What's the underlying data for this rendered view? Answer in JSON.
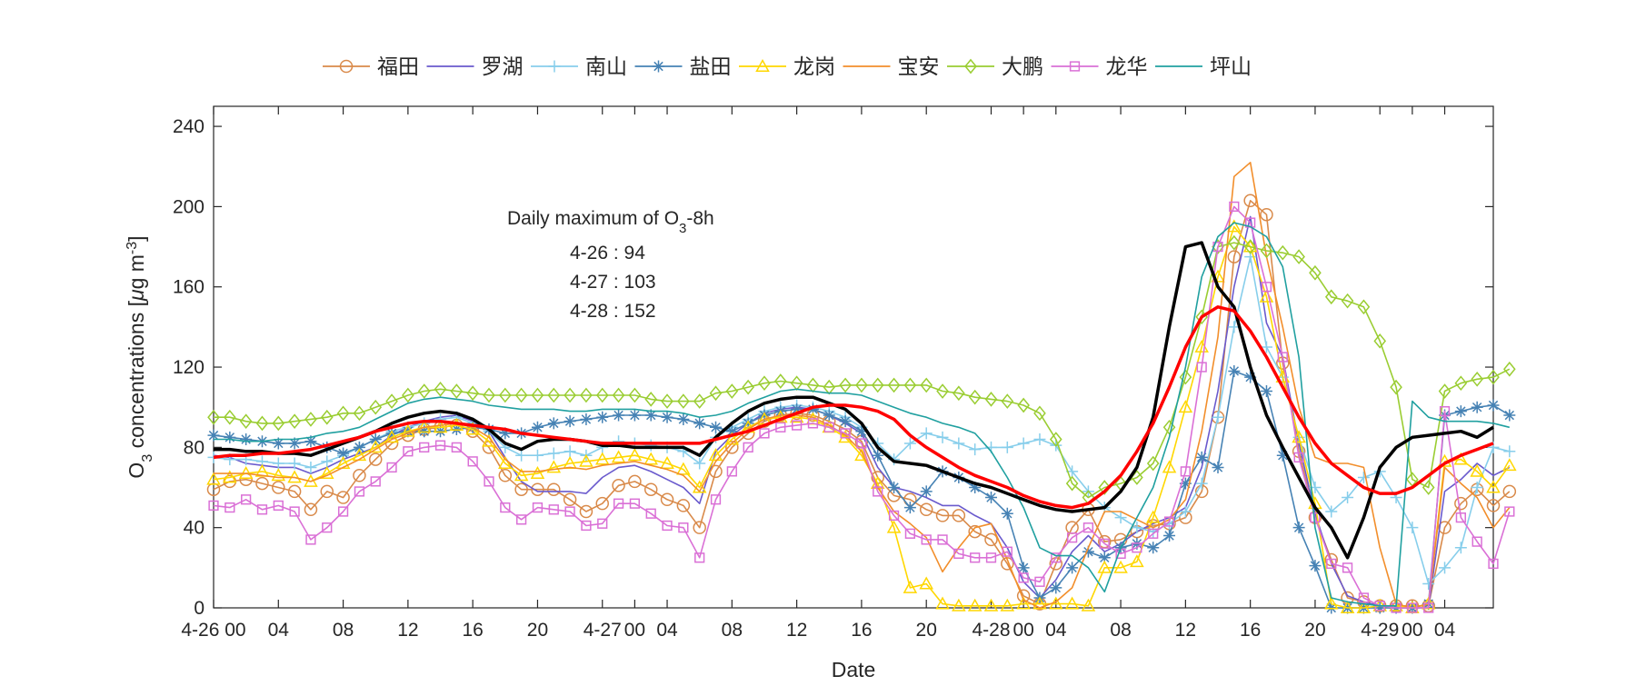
{
  "chart_data": {
    "type": "line",
    "xlabel": "Date",
    "ylabel_parts": [
      "O",
      "3",
      " concentrations [",
      "μ",
      "g m",
      "-3",
      "]"
    ],
    "ylim": [
      0,
      250
    ],
    "yticks": [
      0,
      40,
      80,
      120,
      160,
      200,
      240
    ],
    "xlim": [
      0,
      79
    ],
    "x_unit": "hours from 4-26 00:00",
    "xticks": [
      {
        "x": 0,
        "label": "4-26 00"
      },
      {
        "x": 4,
        "label": "04"
      },
      {
        "x": 8,
        "label": "08"
      },
      {
        "x": 12,
        "label": "12"
      },
      {
        "x": 16,
        "label": "16"
      },
      {
        "x": 20,
        "label": "20"
      },
      {
        "x": 24,
        "label": "4-27"
      },
      {
        "x": 26,
        "label": "00"
      },
      {
        "x": 28,
        "label": "04"
      },
      {
        "x": 32,
        "label": "08"
      },
      {
        "x": 36,
        "label": "12"
      },
      {
        "x": 40,
        "label": "16"
      },
      {
        "x": 44,
        "label": "20"
      },
      {
        "x": 48,
        "label": "4-28"
      },
      {
        "x": 50,
        "label": "00"
      },
      {
        "x": 52,
        "label": "04"
      },
      {
        "x": 56,
        "label": "08"
      },
      {
        "x": 60,
        "label": "12"
      },
      {
        "x": 64,
        "label": "16"
      },
      {
        "x": 68,
        "label": "20"
      },
      {
        "x": 72,
        "label": "4-29"
      },
      {
        "x": 74,
        "label": "00"
      },
      {
        "x": 76,
        "label": "04"
      }
    ],
    "annotation": {
      "title_parts": [
        "Daily maximum of O",
        "3",
        "-8h"
      ],
      "lines": [
        "4-26 : 94",
        "4-27 : 103",
        "4-28 : 152"
      ]
    },
    "legend_position": "top-outside",
    "grid": false,
    "series": [
      {
        "name": "福田",
        "color": "#D98A4A",
        "marker": "circle",
        "y": [
          59,
          63,
          64,
          62,
          60,
          58,
          49,
          58,
          55,
          66,
          74,
          82,
          86,
          89,
          90,
          91,
          88,
          80,
          66,
          59,
          59,
          59,
          54,
          48,
          52,
          61,
          63,
          59,
          54,
          51,
          40,
          68,
          80,
          87,
          93,
          96,
          97,
          96,
          93,
          89,
          83,
          65,
          56,
          54,
          49,
          46,
          46,
          38,
          34,
          22,
          6,
          2,
          22,
          40,
          49,
          33,
          34,
          38,
          41,
          42,
          45,
          58,
          95,
          175,
          203,
          196,
          122,
          78,
          45,
          24,
          5,
          3,
          1,
          1,
          1,
          1,
          40,
          52,
          59,
          51,
          58
        ],
        "markevery": 1
      },
      {
        "name": "罗湖",
        "color": "#6A5ACD",
        "marker": "none",
        "y": [
          76,
          75,
          72,
          71,
          70,
          70,
          67,
          70,
          74,
          77,
          80,
          86,
          90,
          93,
          95,
          96,
          93,
          88,
          75,
          63,
          58,
          58,
          58,
          57,
          65,
          70,
          71,
          68,
          64,
          60,
          52,
          78,
          86,
          92,
          97,
          99,
          100,
          99,
          96,
          92,
          87,
          70,
          60,
          58,
          55,
          51,
          51,
          46,
          42,
          30,
          13,
          5,
          14,
          28,
          36,
          28,
          32,
          38,
          42,
          45,
          50,
          70,
          108,
          160,
          195,
          142,
          125,
          82,
          47,
          22,
          6,
          3,
          1,
          0,
          0,
          0,
          58,
          64,
          72,
          66,
          70
        ]
      },
      {
        "name": "南山",
        "color": "#87CEEB",
        "marker": "plus",
        "y": [
          75,
          74,
          74,
          73,
          72,
          72,
          70,
          73,
          76,
          80,
          84,
          88,
          90,
          92,
          94,
          95,
          92,
          88,
          80,
          76,
          76,
          77,
          78,
          76,
          80,
          83,
          82,
          81,
          80,
          78,
          72,
          85,
          90,
          94,
          98,
          100,
          101,
          100,
          98,
          95,
          90,
          82,
          74,
          82,
          87,
          85,
          82,
          79,
          80,
          80,
          82,
          84,
          81,
          68,
          58,
          50,
          45,
          40,
          38,
          42,
          48,
          62,
          95,
          140,
          175,
          130,
          115,
          85,
          60,
          48,
          55,
          65,
          68,
          55,
          40,
          12,
          20,
          30,
          60,
          80,
          78
        ]
      },
      {
        "name": "盐田",
        "color": "#4682B4",
        "marker": "star",
        "y": [
          86,
          85,
          84,
          83,
          82,
          82,
          83,
          80,
          77,
          80,
          84,
          87,
          88,
          88,
          88,
          89,
          90,
          89,
          87,
          87,
          90,
          92,
          93,
          94,
          95,
          96,
          96,
          96,
          95,
          94,
          92,
          90,
          88,
          92,
          96,
          98,
          99,
          99,
          96,
          93,
          88,
          76,
          60,
          50,
          58,
          68,
          65,
          60,
          55,
          47,
          20,
          5,
          10,
          20,
          28,
          25,
          30,
          32,
          30,
          36,
          62,
          75,
          70,
          118,
          115,
          108,
          76,
          40,
          21,
          0,
          0,
          0,
          0,
          0,
          0,
          2,
          96,
          98,
          100,
          101,
          96
        ]
      },
      {
        "name": "龙岗",
        "color": "#FFD700",
        "marker": "triangle",
        "y": [
          64,
          65,
          67,
          68,
          66,
          65,
          63,
          67,
          72,
          76,
          80,
          85,
          88,
          90,
          90,
          91,
          89,
          83,
          72,
          66,
          67,
          70,
          72,
          73,
          74,
          75,
          76,
          74,
          72,
          69,
          60,
          76,
          84,
          90,
          94,
          95,
          95,
          94,
          90,
          85,
          76,
          62,
          40,
          10,
          12,
          2,
          1,
          1,
          1,
          1,
          2,
          2,
          2,
          2,
          1,
          20,
          20,
          23,
          45,
          70,
          100,
          130,
          165,
          190,
          180,
          155,
          115,
          85,
          52,
          2,
          0,
          0,
          1,
          1,
          0,
          2,
          73,
          74,
          68,
          60,
          71
        ]
      },
      {
        "name": "宝安",
        "color": "#F28E2B",
        "marker": "none",
        "y": [
          67,
          67,
          67,
          66,
          65,
          65,
          63,
          66,
          70,
          74,
          79,
          84,
          87,
          90,
          91,
          92,
          90,
          85,
          74,
          68,
          68,
          69,
          70,
          69,
          71,
          72,
          73,
          71,
          69,
          66,
          58,
          73,
          82,
          89,
          94,
          96,
          96,
          95,
          91,
          86,
          78,
          60,
          48,
          42,
          35,
          18,
          30,
          40,
          42,
          24,
          4,
          0,
          3,
          10,
          30,
          48,
          48,
          44,
          40,
          44,
          54,
          88,
          135,
          215,
          222,
          175,
          140,
          100,
          75,
          72,
          72,
          70,
          30,
          2,
          0,
          2,
          70,
          62,
          55,
          40,
          50
        ]
      },
      {
        "name": "大鹏",
        "color": "#9ACD32",
        "marker": "diamond",
        "y": [
          95,
          95,
          93,
          92,
          92,
          93,
          94,
          95,
          97,
          97,
          100,
          103,
          106,
          108,
          109,
          108,
          107,
          106,
          106,
          106,
          106,
          106,
          106,
          106,
          106,
          106,
          106,
          104,
          103,
          103,
          103,
          107,
          108,
          110,
          112,
          113,
          112,
          111,
          110,
          111,
          111,
          111,
          111,
          111,
          111,
          108,
          107,
          105,
          104,
          103,
          101,
          97,
          84,
          62,
          55,
          60,
          62,
          65,
          72,
          90,
          115,
          145,
          180,
          182,
          180,
          178,
          177,
          175,
          167,
          155,
          153,
          150,
          133,
          110,
          64,
          60,
          108,
          112,
          114,
          115,
          119
        ]
      },
      {
        "name": "龙华",
        "color": "#DA70D6",
        "marker": "square",
        "y": [
          51,
          50,
          54,
          49,
          51,
          48,
          34,
          40,
          48,
          58,
          63,
          70,
          78,
          80,
          81,
          80,
          73,
          63,
          50,
          44,
          50,
          49,
          48,
          41,
          42,
          52,
          52,
          47,
          41,
          40,
          25,
          54,
          68,
          80,
          87,
          90,
          91,
          92,
          90,
          87,
          82,
          58,
          46,
          37,
          34,
          34,
          27,
          25,
          25,
          28,
          15,
          13,
          25,
          35,
          40,
          32,
          27,
          30,
          37,
          43,
          68,
          120,
          180,
          200,
          192,
          160,
          125,
          75,
          45,
          22,
          20,
          5,
          1,
          0,
          0,
          0,
          98,
          45,
          33,
          22,
          48
        ]
      },
      {
        "name": "坪山",
        "color": "#20A0A0",
        "marker": "none",
        "y": [
          84,
          84,
          83,
          83,
          84,
          84,
          85,
          87,
          88,
          90,
          94,
          98,
          102,
          104,
          105,
          104,
          103,
          101,
          100,
          99,
          99,
          99,
          98,
          98,
          99,
          99,
          99,
          98,
          98,
          97,
          95,
          96,
          98,
          102,
          105,
          108,
          109,
          108,
          107,
          107,
          106,
          103,
          100,
          97,
          95,
          92,
          90,
          87,
          78,
          65,
          50,
          30,
          26,
          26,
          20,
          8,
          30,
          45,
          60,
          85,
          120,
          165,
          185,
          192,
          190,
          185,
          170,
          125,
          40,
          5,
          3,
          2,
          1,
          1,
          103,
          95,
          93,
          93,
          93,
          92,
          90
        ]
      },
      {
        "name": "",
        "color": "#000000",
        "marker": "none",
        "width": 3.5,
        "y": [
          79,
          79,
          78,
          78,
          77,
          77,
          76,
          79,
          82,
          85,
          88,
          92,
          95,
          97,
          98,
          97,
          94,
          89,
          82,
          79,
          83,
          84,
          84,
          83,
          81,
          81,
          80,
          80,
          80,
          80,
          76,
          85,
          92,
          98,
          102,
          104,
          105,
          105,
          102,
          99,
          92,
          80,
          73,
          72,
          71,
          68,
          65,
          62,
          60,
          57,
          54,
          51,
          49,
          48,
          49,
          50,
          58,
          70,
          95,
          140,
          180,
          182,
          160,
          150,
          120,
          96,
          80,
          65,
          50,
          40,
          25,
          45,
          70,
          80,
          85,
          86,
          87,
          88,
          85,
          90
        ]
      },
      {
        "name": "",
        "color": "#FF0000",
        "marker": "none",
        "width": 3.5,
        "y": [
          75,
          76,
          76,
          77,
          77,
          78,
          79,
          81,
          83,
          85,
          88,
          90,
          92,
          93,
          93,
          92,
          91,
          90,
          89,
          87,
          86,
          85,
          84,
          83,
          82,
          82,
          82,
          82,
          82,
          82,
          82,
          84,
          86,
          88,
          91,
          94,
          97,
          100,
          101,
          101,
          100,
          98,
          94,
          86,
          80,
          75,
          70,
          66,
          63,
          60,
          56,
          53,
          51,
          50,
          52,
          58,
          66,
          78,
          92,
          110,
          130,
          145,
          150,
          148,
          138,
          125,
          110,
          95,
          82,
          72,
          66,
          60,
          57,
          57,
          60,
          66,
          72,
          76,
          79,
          82
        ]
      }
    ]
  }
}
